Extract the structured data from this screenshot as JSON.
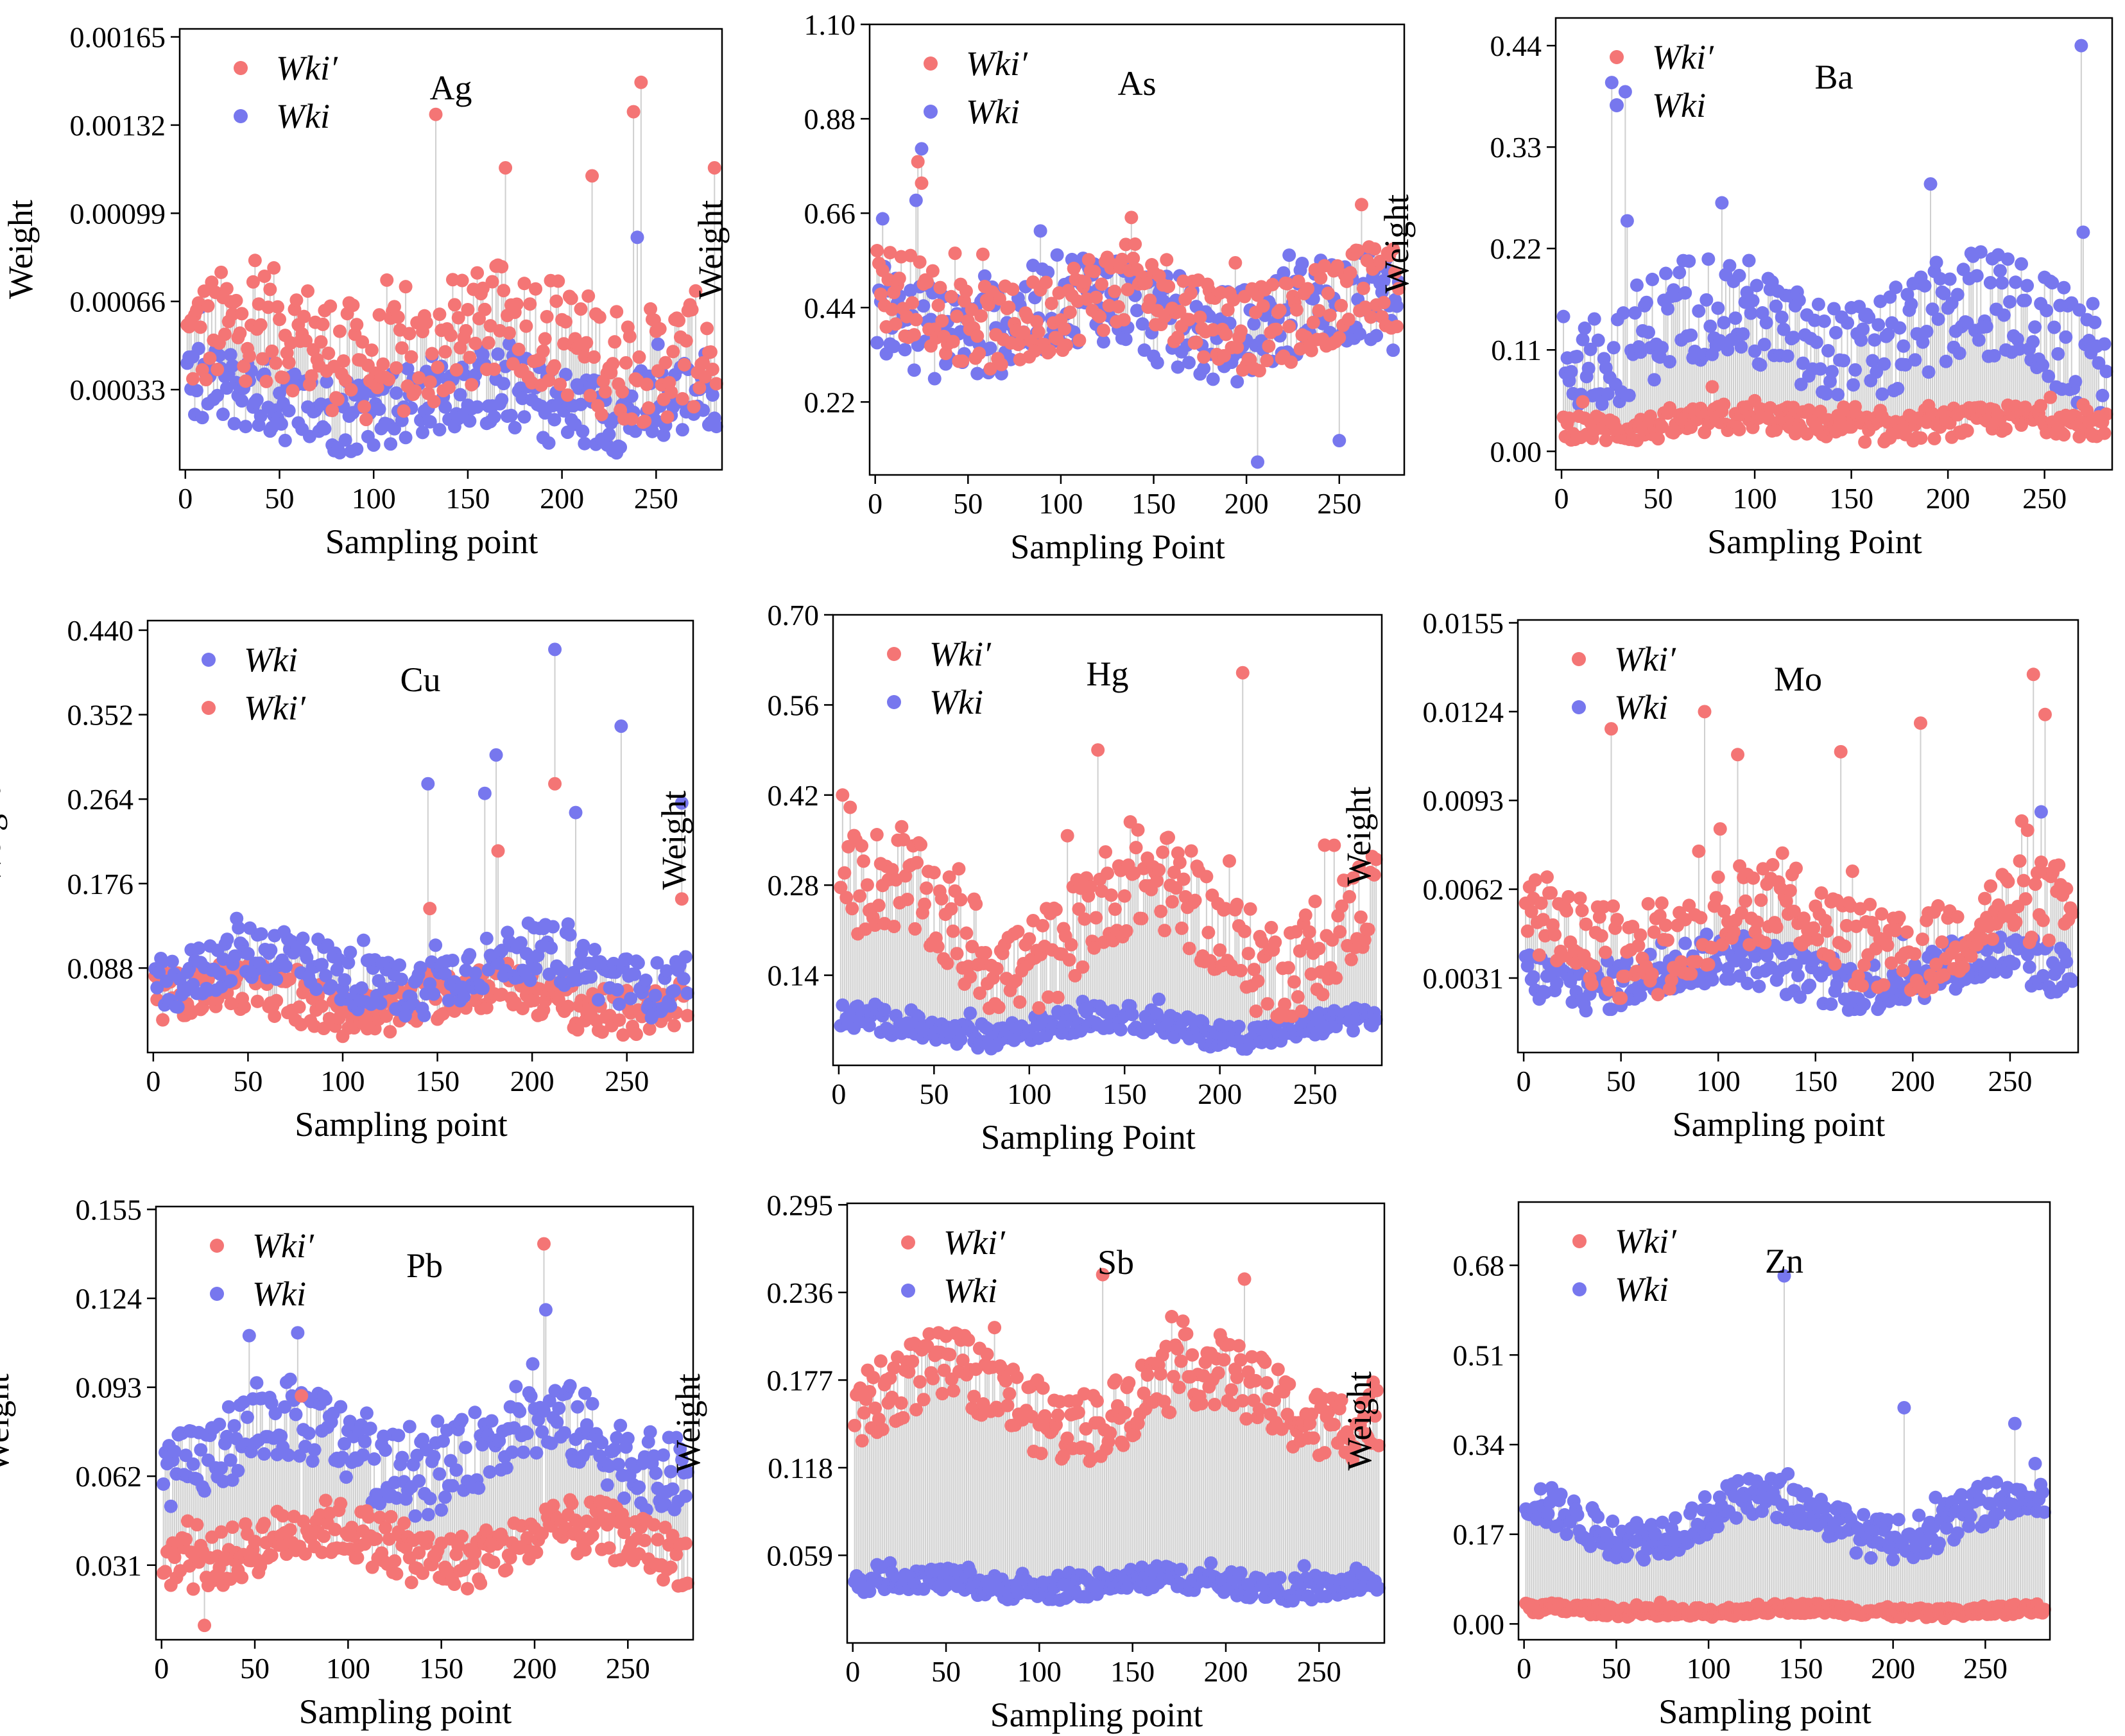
{
  "colors": {
    "wki_prime": "#f47575",
    "wki": "#7777ee",
    "stem": "#cfcfcf"
  },
  "chart_data": [
    {
      "type": "scatter",
      "title": "Ag",
      "xlabel": "Sampling point",
      "ylabel": "Weight",
      "xlim": [
        -3,
        285
      ],
      "ylim": [
        3e-05,
        0.00168
      ],
      "xticks": [
        0,
        50,
        100,
        150,
        200,
        250
      ],
      "yticks": [
        "0.00033",
        "0.00066",
        "0.00099",
        "0.00132",
        "0.00165"
      ],
      "legend": [
        "Wki′",
        "Wki"
      ],
      "legend_position": "top-left",
      "series": [
        {
          "name": "Wki′",
          "color": "#f47575",
          "base": 0.0005,
          "spread": 0.00022,
          "wave": 8e-05,
          "spikes": [
            [
              133,
              0.00136
            ],
            [
              170,
              0.00116
            ],
            [
              216,
              0.00113
            ],
            [
              238,
              0.00137
            ],
            [
              242,
              0.00148
            ],
            [
              281,
              0.00116
            ]
          ]
        },
        {
          "name": "Wki",
          "color": "#7777ee",
          "base": 0.00029,
          "spread": 0.00015,
          "wave": 5e-05,
          "spikes": [
            [
              240,
              0.0009
            ]
          ]
        }
      ]
    },
    {
      "type": "scatter",
      "title": "As",
      "xlabel": "Sampling Point",
      "ylabel": "Weight",
      "xlim": [
        -3,
        285
      ],
      "ylim": [
        0.05,
        1.1
      ],
      "xticks": [
        0,
        50,
        100,
        150,
        200,
        250
      ],
      "yticks": [
        "0.22",
        "0.44",
        "0.66",
        "0.88",
        "1.10"
      ],
      "legend": [
        "Wki′",
        "Wki"
      ],
      "legend_position": "top-left",
      "series": [
        {
          "name": "Wki′",
          "color": "#f47575",
          "base": 0.44,
          "spread": 0.1,
          "wave": 0.05,
          "spikes": [
            [
              23,
              0.78
            ],
            [
              25,
              0.73
            ],
            [
              138,
              0.65
            ],
            [
              262,
              0.68
            ]
          ]
        },
        {
          "name": "Wki",
          "color": "#7777ee",
          "base": 0.42,
          "spread": 0.11,
          "wave": 0.05,
          "spikes": [
            [
              25,
              0.81
            ],
            [
              22,
              0.69
            ],
            [
              206,
              0.08
            ],
            [
              250,
              0.13
            ]
          ]
        }
      ]
    },
    {
      "type": "scatter",
      "title": "Ba",
      "xlabel": "Sampling Point",
      "ylabel": "Weight",
      "xlim": [
        -3,
        285
      ],
      "ylim": [
        -0.02,
        0.47
      ],
      "xticks": [
        0,
        50,
        100,
        150,
        200,
        250
      ],
      "yticks": [
        "0.00",
        "0.11",
        "0.22",
        "0.33",
        "0.44"
      ],
      "legend": [
        "Wki′",
        "Wki"
      ],
      "legend_position": "top-left",
      "series": [
        {
          "name": "Wki′",
          "color": "#f47575",
          "base": 0.03,
          "spread": 0.015,
          "wave": 0.006,
          "spikes": [
            [
              78,
              0.07
            ]
          ]
        },
        {
          "name": "Wki",
          "color": "#7777ee",
          "base": 0.13,
          "spread": 0.06,
          "wave": 0.03,
          "spikes": [
            [
              26,
              0.4
            ],
            [
              33,
              0.39
            ],
            [
              34,
              0.25
            ],
            [
              191,
              0.29
            ],
            [
              269,
              0.44
            ]
          ]
        }
      ]
    },
    {
      "type": "scatter",
      "title": "Cu",
      "xlabel": "Sampling point",
      "ylabel": "Weight",
      "xlim": [
        -3,
        285
      ],
      "ylim": [
        0.0,
        0.45
      ],
      "xticks": [
        0,
        50,
        100,
        150,
        200,
        250
      ],
      "yticks": [
        "0.088",
        "0.176",
        "0.264",
        "0.352",
        "0.440"
      ],
      "legend": [
        "Wki",
        "Wki′"
      ],
      "legend_position": "top-left",
      "series": [
        {
          "name": "Wki",
          "color": "#7777ee",
          "base": 0.085,
          "spread": 0.03,
          "wave": 0.02,
          "spikes": [
            [
              145,
              0.28
            ],
            [
              175,
              0.27
            ],
            [
              181,
              0.31
            ],
            [
              212,
              0.42
            ],
            [
              223,
              0.25
            ],
            [
              247,
              0.34
            ],
            [
              279,
              0.26
            ]
          ]
        },
        {
          "name": "Wki′",
          "color": "#f47575",
          "base": 0.055,
          "spread": 0.025,
          "wave": 0.015,
          "spikes": [
            [
              212,
              0.28
            ],
            [
              182,
              0.21
            ],
            [
              279,
              0.16
            ],
            [
              146,
              0.15
            ]
          ]
        }
      ]
    },
    {
      "type": "scatter",
      "title": "Hg",
      "xlabel": "Sampling Point",
      "ylabel": "Weight",
      "xlim": [
        -3,
        285
      ],
      "ylim": [
        0.0,
        0.7
      ],
      "xticks": [
        0,
        50,
        100,
        150,
        200,
        250
      ],
      "yticks": [
        "0.14",
        "0.28",
        "0.42",
        "0.56",
        "0.70"
      ],
      "legend": [
        "Wki′",
        "Wki"
      ],
      "legend_position": "top-left",
      "series": [
        {
          "name": "Wki′",
          "color": "#f47575",
          "base": 0.22,
          "spread": 0.08,
          "wave": 0.07,
          "spikes": [
            [
              2,
              0.42
            ],
            [
              136,
              0.49
            ],
            [
              212,
              0.61
            ],
            [
              282,
              0.32
            ]
          ]
        },
        {
          "name": "Wki",
          "color": "#7777ee",
          "base": 0.06,
          "spread": 0.02,
          "wave": 0.015,
          "spikes": []
        }
      ]
    },
    {
      "type": "scatter",
      "title": "Mo",
      "xlabel": "Sampling point",
      "ylabel": "Weight",
      "xlim": [
        -3,
        285
      ],
      "ylim": [
        0.0005,
        0.0156
      ],
      "xticks": [
        0,
        50,
        100,
        150,
        200,
        250
      ],
      "yticks": [
        "0.0031",
        "0.0062",
        "0.0093",
        "0.0124",
        "0.0155"
      ],
      "legend": [
        "Wki′",
        "Wki"
      ],
      "legend_position": "top-left",
      "series": [
        {
          "name": "Wki′",
          "color": "#f47575",
          "base": 0.0048,
          "spread": 0.0015,
          "wave": 0.001,
          "spikes": [
            [
              45,
              0.0118
            ],
            [
              93,
              0.0124
            ],
            [
              110,
              0.0109
            ],
            [
              163,
              0.011
            ],
            [
              204,
              0.012
            ],
            [
              262,
              0.0137
            ],
            [
              268,
              0.0123
            ]
          ]
        },
        {
          "name": "Wki",
          "color": "#7777ee",
          "base": 0.0033,
          "spread": 0.0009,
          "wave": 0.0005,
          "spikes": [
            [
              266,
              0.0089
            ]
          ]
        }
      ]
    },
    {
      "type": "scatter",
      "title": "Pb",
      "xlabel": "Sampling point",
      "ylabel": "Weight",
      "xlim": [
        -3,
        285
      ],
      "ylim": [
        0.005,
        0.156
      ],
      "xticks": [
        0,
        50,
        100,
        150,
        200,
        250
      ],
      "yticks": [
        "0.031",
        "0.062",
        "0.093",
        "0.124",
        "0.155"
      ],
      "legend": [
        "Wki′",
        "Wki"
      ],
      "legend_position": "top-left",
      "series": [
        {
          "name": "Wki′",
          "color": "#f47575",
          "base": 0.038,
          "spread": 0.01,
          "wave": 0.006,
          "spikes": [
            [
              205,
              0.143
            ],
            [
              75,
              0.09
            ],
            [
              23,
              0.01
            ]
          ]
        },
        {
          "name": "Wki",
          "color": "#7777ee",
          "base": 0.072,
          "spread": 0.014,
          "wave": 0.01,
          "spikes": [
            [
              206,
              0.12
            ],
            [
              47,
              0.111
            ],
            [
              73,
              0.112
            ]
          ]
        }
      ]
    },
    {
      "type": "scatter",
      "title": "Sb",
      "xlabel": "Sampling point",
      "ylabel": "Weight",
      "xlim": [
        -3,
        285
      ],
      "ylim": [
        0.0,
        0.296
      ],
      "xticks": [
        0,
        50,
        100,
        150,
        200,
        250
      ],
      "yticks": [
        "0.059",
        "0.118",
        "0.177",
        "0.236",
        "0.295"
      ],
      "legend": [
        "Wki′",
        "Wki"
      ],
      "legend_position": "top-left",
      "series": [
        {
          "name": "Wki′",
          "color": "#f47575",
          "base": 0.165,
          "spread": 0.025,
          "wave": 0.02,
          "spikes": [
            [
              134,
              0.248
            ],
            [
              210,
              0.245
            ]
          ]
        },
        {
          "name": "Wki",
          "color": "#7777ee",
          "base": 0.04,
          "spread": 0.008,
          "wave": 0.004,
          "spikes": []
        }
      ]
    },
    {
      "type": "scatter",
      "title": "Zn",
      "xlabel": "Sampling point",
      "ylabel": "Weight",
      "xlim": [
        -3,
        285
      ],
      "ylim": [
        -0.03,
        0.8
      ],
      "xticks": [
        0,
        50,
        100,
        150,
        200,
        250
      ],
      "yticks": [
        "0.00",
        "0.17",
        "0.34",
        "0.51",
        "0.68"
      ],
      "legend": [
        "Wki′",
        "Wki"
      ],
      "legend_position": "top-left",
      "series": [
        {
          "name": "Wki′",
          "color": "#f47575",
          "base": 0.025,
          "spread": 0.01,
          "wave": 0.005,
          "spikes": []
        },
        {
          "name": "Wki",
          "color": "#7777ee",
          "base": 0.2,
          "spread": 0.04,
          "wave": 0.04,
          "spikes": [
            [
              141,
              0.66
            ],
            [
              206,
              0.41
            ],
            [
              266,
              0.38
            ]
          ]
        }
      ]
    }
  ]
}
